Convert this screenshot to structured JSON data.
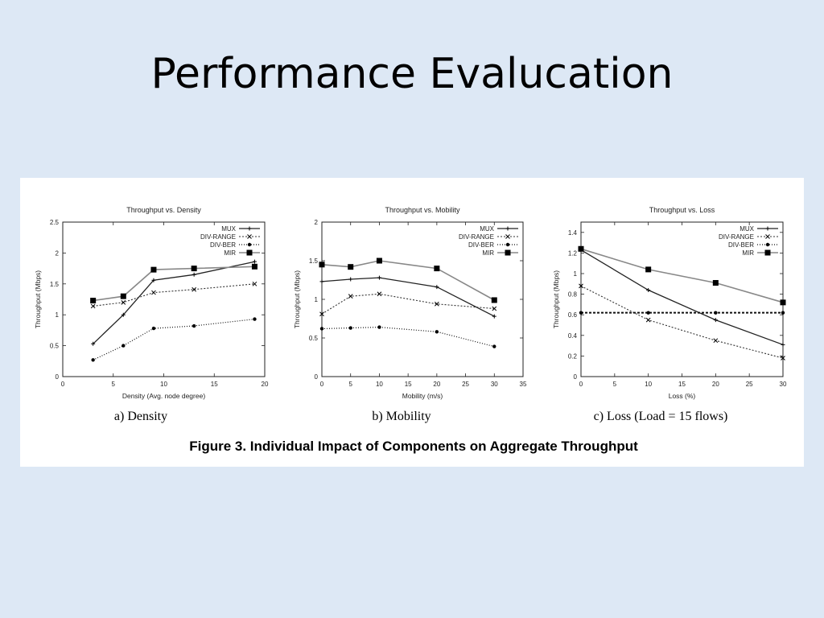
{
  "slide": {
    "title": "Performance Evalucation"
  },
  "figure": {
    "caption": "Figure 3. Individual Impact of Components on Aggregate Throughput"
  },
  "chart_data": [
    {
      "type": "line",
      "title": "Throughput vs. Density",
      "subcaption": "a) Density",
      "xlabel": "Density (Avg. node degree)",
      "ylabel": "Throughput (Mbps)",
      "xlim": [
        0,
        20
      ],
      "ylim": [
        0,
        2.5
      ],
      "xticks": [
        "0",
        "5",
        "10",
        "15",
        "20"
      ],
      "yticks": [
        "0",
        "0.5",
        "1",
        "1.5",
        "2",
        "2.5"
      ],
      "legend_position": "top-right",
      "series": [
        {
          "name": "MUX",
          "x": [
            3,
            6,
            9,
            13,
            19
          ],
          "values": [
            0.53,
            1.0,
            1.56,
            1.65,
            1.86
          ]
        },
        {
          "name": "DIV-RANGE",
          "x": [
            3,
            6,
            9,
            13,
            19
          ],
          "values": [
            1.14,
            1.2,
            1.36,
            1.41,
            1.5
          ]
        },
        {
          "name": "DIV-BER",
          "x": [
            3,
            6,
            9,
            13,
            19
          ],
          "values": [
            0.27,
            0.5,
            0.78,
            0.82,
            0.93
          ]
        },
        {
          "name": "MIR",
          "x": [
            3,
            6,
            9,
            13,
            19
          ],
          "values": [
            1.23,
            1.3,
            1.73,
            1.75,
            1.78
          ]
        }
      ]
    },
    {
      "type": "line",
      "title": "Throughput vs. Mobility",
      "subcaption": "b) Mobility",
      "xlabel": "Mobility (m/s)",
      "ylabel": "Throughput (Mbps)",
      "xlim": [
        0,
        35
      ],
      "ylim": [
        0,
        2
      ],
      "xticks": [
        "0",
        "5",
        "10",
        "15",
        "20",
        "25",
        "30",
        "35"
      ],
      "yticks": [
        "0",
        "0.5",
        "1",
        "1.5",
        "2"
      ],
      "legend_position": "top-right",
      "series": [
        {
          "name": "MUX",
          "x": [
            0,
            5,
            10,
            20,
            30
          ],
          "values": [
            1.23,
            1.26,
            1.28,
            1.16,
            0.78
          ]
        },
        {
          "name": "DIV-RANGE",
          "x": [
            0,
            5,
            10,
            20,
            30
          ],
          "values": [
            0.81,
            1.04,
            1.07,
            0.94,
            0.88
          ]
        },
        {
          "name": "DIV-BER",
          "x": [
            0,
            5,
            10,
            20,
            30
          ],
          "values": [
            0.62,
            0.63,
            0.64,
            0.58,
            0.39
          ]
        },
        {
          "name": "MIR",
          "x": [
            0,
            5,
            10,
            20,
            30
          ],
          "values": [
            1.45,
            1.42,
            1.5,
            1.4,
            0.99
          ]
        }
      ]
    },
    {
      "type": "line",
      "title": "Throughput vs. Loss",
      "subcaption": "c) Loss (Load = 15 flows)",
      "xlabel": "Loss (%)",
      "ylabel": "Throughput (Mbps)",
      "xlim": [
        0,
        30
      ],
      "ylim": [
        0,
        1.5
      ],
      "xticks": [
        "0",
        "5",
        "10",
        "15",
        "20",
        "25",
        "30"
      ],
      "yticks": [
        "0",
        "0.2",
        "0.4",
        "0.6",
        "0.8",
        "1",
        "1.2",
        "1.4"
      ],
      "legend_position": "top-right",
      "series": [
        {
          "name": "MUX",
          "x": [
            0,
            10,
            20,
            30
          ],
          "values": [
            1.23,
            0.84,
            0.55,
            0.31
          ]
        },
        {
          "name": "DIV-RANGE",
          "x": [
            0,
            10,
            20,
            30
          ],
          "values": [
            0.88,
            0.55,
            0.35,
            0.18
          ]
        },
        {
          "name": "DIV-BER",
          "x": [
            0,
            10,
            20,
            30
          ],
          "values": [
            0.62,
            0.62,
            0.62,
            0.62
          ]
        },
        {
          "name": "MIR",
          "x": [
            0,
            10,
            20,
            30
          ],
          "values": [
            1.24,
            1.04,
            0.91,
            0.72
          ]
        }
      ]
    }
  ]
}
